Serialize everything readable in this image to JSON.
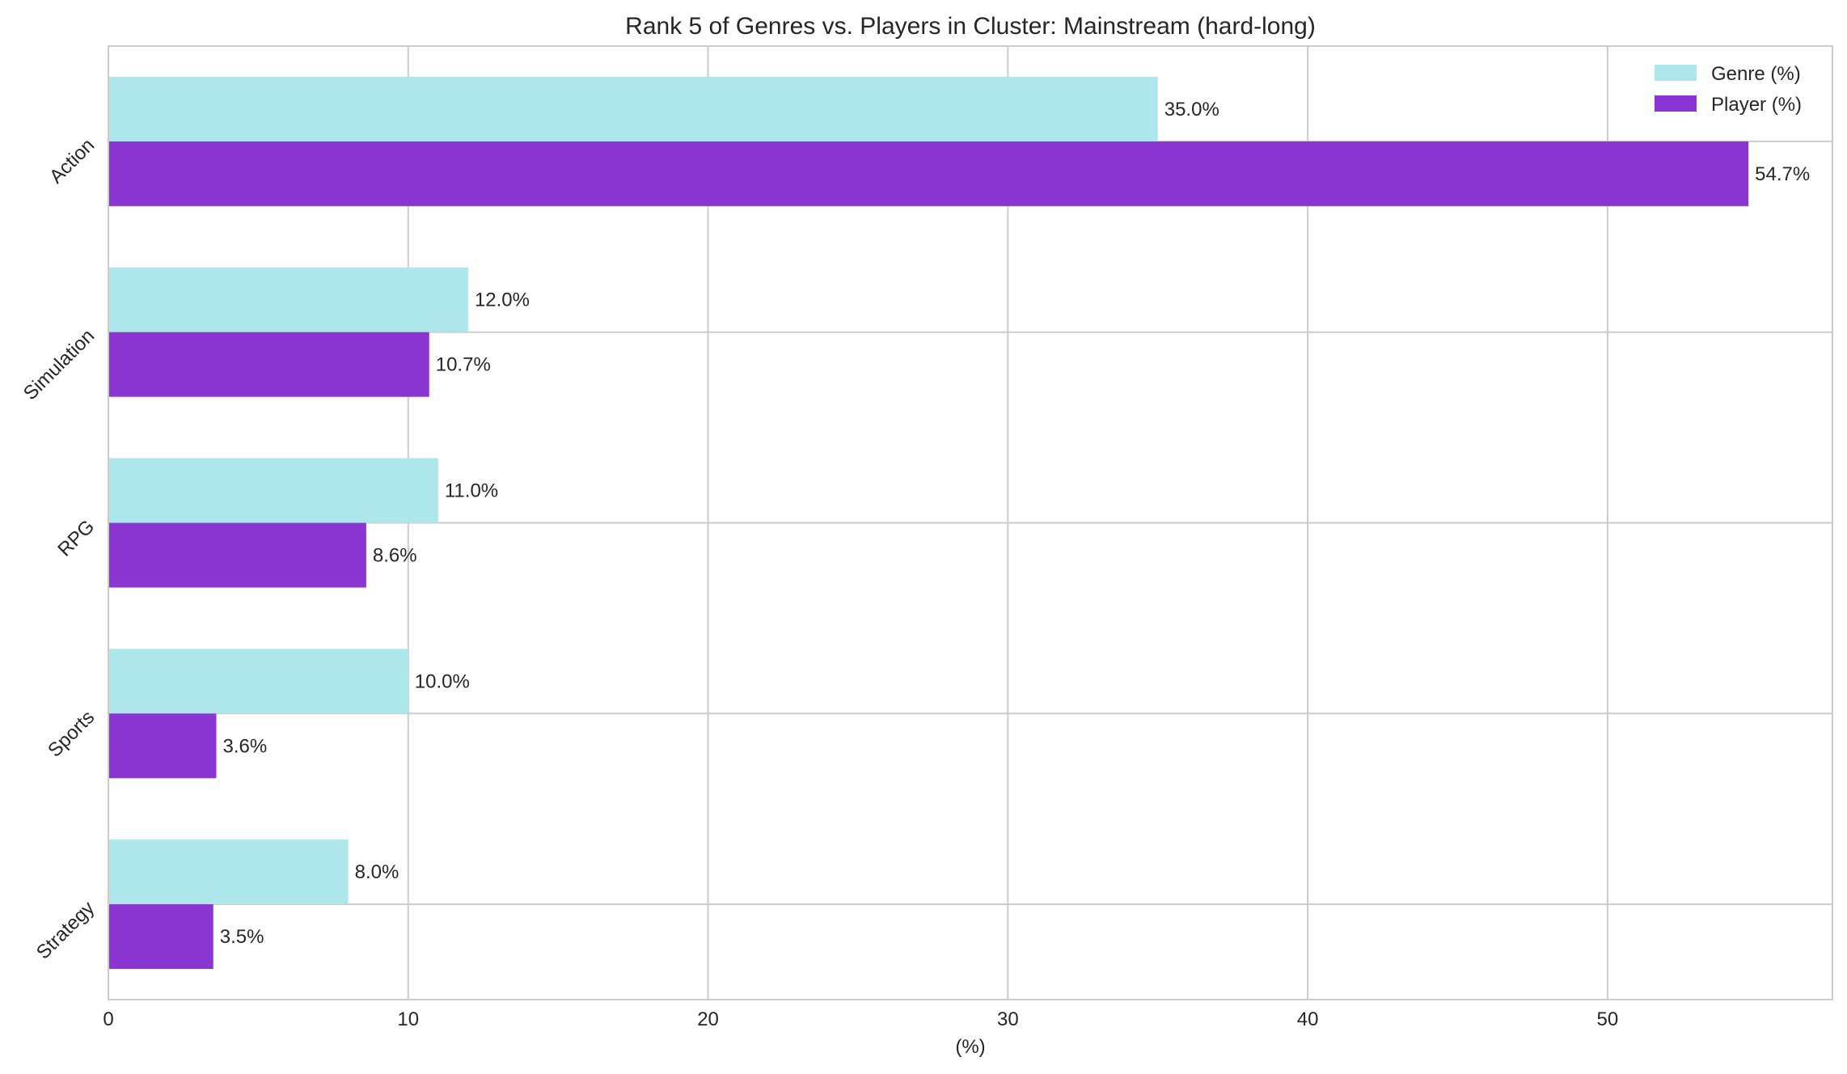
{
  "chart_data": {
    "type": "bar",
    "orientation": "horizontal",
    "title": "Rank 5 of Genres vs. Players in Cluster: Mainstream (hard-long)",
    "xlabel": "(%)",
    "ylabel": "",
    "xlim": [
      0,
      57.5
    ],
    "xticks": [
      "0",
      "10",
      "20",
      "30",
      "40",
      "50"
    ],
    "categories": [
      "Action",
      "Simulation",
      "RPG",
      "Sports",
      "Strategy"
    ],
    "series": [
      {
        "name": "Genre (%)",
        "color": "#aee7eb",
        "values": [
          35.0,
          12.0,
          11.0,
          10.0,
          8.0
        ],
        "labels": [
          "35.0%",
          "12.0%",
          "11.0%",
          "10.0%",
          "8.0%"
        ]
      },
      {
        "name": "Player (%)",
        "color": "#8b36d2",
        "values": [
          54.7,
          10.7,
          8.6,
          3.6,
          3.5
        ],
        "labels": [
          "54.7%",
          "10.7%",
          "8.6%",
          "3.6%",
          "3.5%"
        ]
      }
    ],
    "grid": true,
    "legend_position": "top-right"
  }
}
